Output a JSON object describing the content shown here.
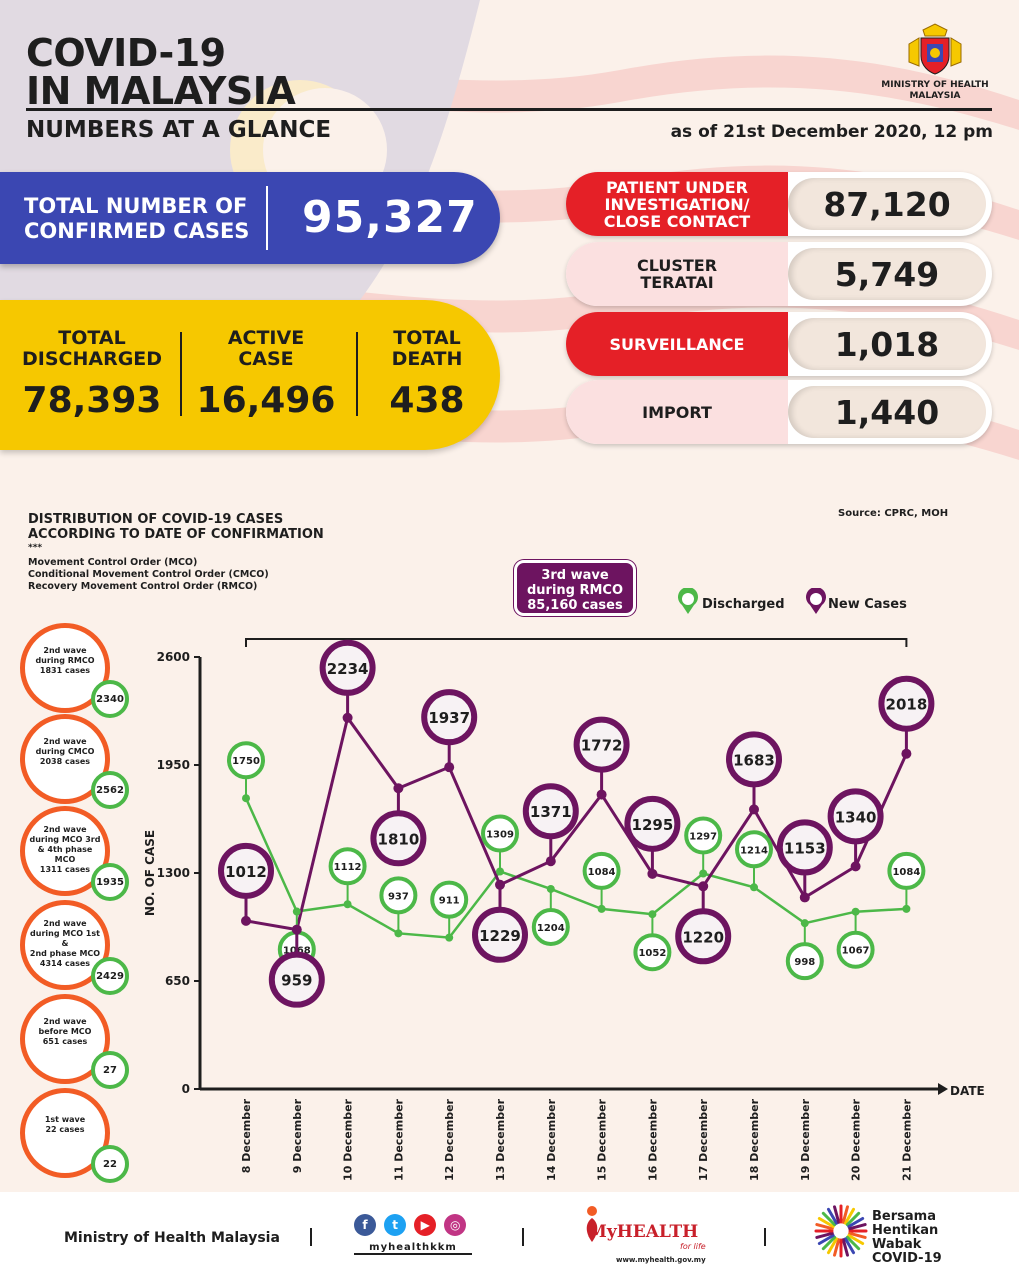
{
  "header": {
    "title_line1": "COVID-19",
    "title_line2": "IN MALAYSIA",
    "subtitle": "NUMBERS AT A GLANCE",
    "as_of": "as of 21st December 2020, 12 pm",
    "ministry_line1": "MINISTRY OF HEALTH",
    "ministry_line2": "MALAYSIA"
  },
  "totals": {
    "confirmed_label_1": "TOTAL NUMBER OF",
    "confirmed_label_2": "CONFIRMED CASES",
    "confirmed_value": "95,327",
    "discharged_label_1": "TOTAL",
    "discharged_label_2": "DISCHARGED",
    "discharged_value": "78,393",
    "active_label_1": "ACTIVE",
    "active_label_2": "CASE",
    "active_value": "16,496",
    "death_label_1": "TOTAL",
    "death_label_2": "DEATH",
    "death_value": "438"
  },
  "categories": [
    {
      "label_1": "PATIENT UNDER",
      "label_2": "INVESTIGATION/",
      "label_3": "CLOSE CONTACT",
      "value": "87,120"
    },
    {
      "label_1": "CLUSTER",
      "label_2": "TERATAI",
      "label_3": "",
      "value": "5,749"
    },
    {
      "label_1": "SURVEILLANCE",
      "label_2": "",
      "label_3": "",
      "value": "1,018"
    },
    {
      "label_1": "IMPORT",
      "label_2": "",
      "label_3": "",
      "value": "1,440"
    }
  ],
  "distribution": {
    "title_1": "DISTRIBUTION OF COVID-19 CASES",
    "title_2": "ACCORDING TO DATE OF CONFIRMATION",
    "source": "Source: CPRC, MOH",
    "stars": "***",
    "abbr_1": "Movement Control Order (MCO)",
    "abbr_2": "Conditional Movement Control Order (CMCO)",
    "abbr_3": "Recovery Movement Control Order (RMCO)",
    "wave3_1": "3rd wave",
    "wave3_2": "during RMCO",
    "wave3_3": "85,160 cases",
    "legend_discharged": "Discharged",
    "legend_new": "New Cases"
  },
  "waves": [
    {
      "line_1": "2nd wave",
      "line_2": "during RMCO",
      "line_3": "1831 cases",
      "line_4": "",
      "discharged": "2340"
    },
    {
      "line_1": "2nd wave",
      "line_2": "during CMCO",
      "line_3": "2038 cases",
      "line_4": "",
      "discharged": "2562"
    },
    {
      "line_1": "2nd wave",
      "line_2": "during MCO 3rd",
      "line_3": "& 4th phase MCO",
      "line_4": "1311 cases",
      "discharged": "1935"
    },
    {
      "line_1": "2nd wave",
      "line_2": "during MCO 1st &",
      "line_3": "2nd phase MCO",
      "line_4": "4314 cases",
      "discharged": "2429"
    },
    {
      "line_1": "2nd wave",
      "line_2": "before MCO",
      "line_3": "651 cases",
      "line_4": "",
      "discharged": "27"
    },
    {
      "line_1": "1st wave",
      "line_2": "22 cases",
      "line_3": "",
      "line_4": "",
      "discharged": "22"
    }
  ],
  "chart_data": {
    "type": "line",
    "x": [
      "8 December",
      "9 December",
      "10 December",
      "11 December",
      "12 December",
      "13 December",
      "14 December",
      "15 December",
      "16 December",
      "17 December",
      "18 December",
      "19 December",
      "20 December",
      "21 December"
    ],
    "series": [
      {
        "name": "Discharged",
        "color": "#4cb848",
        "values": [
          1750,
          1068,
          1112,
          937,
          911,
          1309,
          1204,
          1084,
          1052,
          1297,
          1214,
          998,
          1067,
          1084
        ]
      },
      {
        "name": "New Cases",
        "color": "#6d1460",
        "values": [
          1012,
          959,
          2234,
          1810,
          1937,
          1229,
          1371,
          1772,
          1295,
          1220,
          1683,
          1153,
          1340,
          2018
        ]
      }
    ],
    "yticks": [
      "0",
      "650",
      "1300",
      "1950",
      "2600"
    ],
    "ylim": [
      0,
      2600
    ],
    "ylabel": "NO. OF CASE",
    "xlabel": "DATE"
  },
  "footer": {
    "ministry": "Ministry of Health Malaysia",
    "handle": "myhealthkkm",
    "myhealth": "MyHEALTH",
    "forlife": "for life",
    "url": "www.myhealth.gov.my",
    "campaign_1": "Bersama",
    "campaign_2": "Hentikan",
    "campaign_3": "Wabak",
    "campaign_4": "COVID-19"
  },
  "colors": {
    "blue": "#3b47b2",
    "yellow": "#f6c800",
    "red": "#e52027",
    "pink": "#fbe0e0",
    "orange": "#f25c25",
    "green": "#4cb848",
    "purple": "#6d1460"
  }
}
